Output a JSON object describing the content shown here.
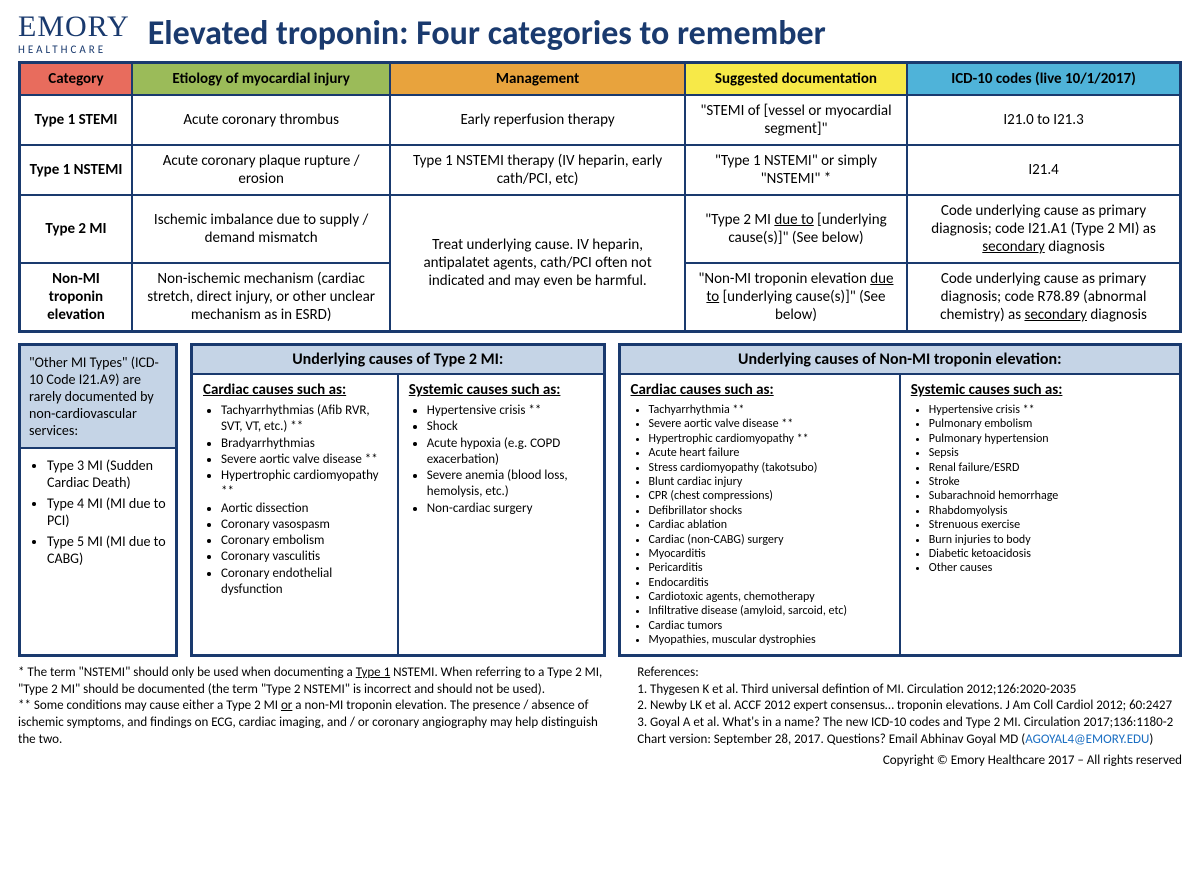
{
  "logo": {
    "main": "EMORY",
    "sub": "HEALTHCARE"
  },
  "title": "Elevated troponin: Four categories to remember",
  "columns": {
    "category": "Category",
    "etiology": "Etiology of myocardial injury",
    "management": "Management",
    "doc": "Suggested documentation",
    "icd": "ICD-10 codes (live 10/1/2017)"
  },
  "colors": {
    "category": "#e86c5d",
    "etiology": "#9bbb59",
    "management": "#e8a33d",
    "doc": "#f7e948",
    "icd": "#4fb3d9",
    "border": "#1a3a6e",
    "panel_bg": "#c5d4e6"
  },
  "rows": [
    {
      "category": "Type 1 STEMI",
      "etiology": "Acute coronary thrombus",
      "management": "Early reperfusion therapy",
      "doc": "\"STEMI of [vessel or myocardial segment]\"",
      "icd": "I21.0 to I21.3"
    },
    {
      "category": "Type 1 NSTEMI",
      "etiology": "Acute coronary plaque rupture / erosion",
      "management": "Type 1 NSTEMI therapy (IV heparin, early cath/PCI, etc)",
      "doc": "\"Type 1 NSTEMI\" or simply \"NSTEMI\" *",
      "icd": "I21.4"
    },
    {
      "category": "Type 2 MI",
      "etiology": "Ischemic imbalance due to supply / demand mismatch"
    },
    {
      "category": "Non-MI troponin elevation",
      "etiology": "Non-ischemic mechanism (cardiac stretch, direct injury, or other unclear mechanism as in ESRD)"
    }
  ],
  "merged_management": "Treat underlying cause.  IV heparin, antipalatet agents, cath/PCI often not indicated and may even be harmful.",
  "type2_doc_pre": "\"Type 2 MI ",
  "type2_doc_u": "due to",
  "type2_doc_post": " [underlying cause(s)]\" (See below)",
  "nonmi_doc_pre": "\"Non-MI troponin elevation ",
  "nonmi_doc_u": "due to",
  "nonmi_doc_post": " [underlying cause(s)]\" (See below)",
  "type2_icd_pre": "Code underlying cause as primary diagnosis; code I21.A1 (Type 2 MI) as ",
  "type2_icd_u": "secondary",
  "type2_icd_post": " diagnosis",
  "nonmi_icd_pre": "Code underlying cause as primary diagnosis; code R78.89 (abnormal chemistry) as ",
  "nonmi_icd_u": "secondary",
  "nonmi_icd_post": " diagnosis",
  "other": {
    "intro": "\"Other MI Types\" (ICD-10 Code I21.A9) are rarely documented by non-cardiovascular services:",
    "items": [
      "Type 3 MI (Sudden Cardiac Death)",
      "Type 4 MI (MI due to PCI)",
      "Type 5 MI (MI due to CABG)"
    ]
  },
  "type2_causes": {
    "header": "Underlying causes of Type 2 MI:",
    "cardiac_title": "Cardiac causes such as:",
    "cardiac": [
      "Tachyarrhythmias (Afib RVR, SVT, VT, etc.) **",
      "Bradyarrhythmias",
      "Severe aortic valve disease **",
      "Hypertrophic cardiomyopathy **",
      "Aortic dissection",
      "Coronary vasospasm",
      "Coronary embolism",
      "Coronary vasculitis",
      "Coronary endothelial dysfunction"
    ],
    "systemic_title": "Systemic causes such as:",
    "systemic": [
      "Hypertensive crisis **",
      "Shock",
      "Acute hypoxia (e.g. COPD exacerbation)",
      "Severe anemia (blood loss, hemolysis, etc.)",
      "Non-cardiac surgery"
    ]
  },
  "nonmi_causes": {
    "header": "Underlying causes of Non-MI troponin elevation:",
    "cardiac_title": "Cardiac causes such as:",
    "cardiac": [
      "Tachyarrhythmia **",
      "Severe aortic valve disease **",
      "Hypertrophic cardiomyopathy **",
      "Acute heart failure",
      "Stress cardiomyopathy (takotsubo)",
      "Blunt cardiac injury",
      "CPR (chest compressions)",
      "Defibrillator shocks",
      "Cardiac ablation",
      "Cardiac (non-CABG) surgery",
      "Myocarditis",
      "Pericarditis",
      "Endocarditis",
      "Cardiotoxic agents, chemotherapy",
      "Infiltrative disease (amyloid, sarcoid, etc)",
      "Cardiac tumors",
      "Myopathies, muscular dystrophies"
    ],
    "systemic_title": "Systemic causes such as:",
    "systemic": [
      "Hypertensive crisis **",
      "Pulmonary embolism",
      "Pulmonary hypertension",
      "Sepsis",
      "Renal failure/ESRD",
      "Stroke",
      "Subarachnoid hemorrhage",
      "Rhabdomyolysis",
      "Strenuous exercise",
      "Burn injuries to body",
      "Diabetic ketoacidosis",
      "Other causes"
    ]
  },
  "footnote1_pre": "* The term \"NSTEMI\" should only be used when documenting a ",
  "footnote1_u": "Type 1",
  "footnote1_post": " NSTEMI. When referring to a Type 2 MI, \"Type 2 MI\" should be documented (the term \"Type 2 NSTEMI\" is incorrect and should not be used).",
  "footnote2_pre": "** Some conditions may cause either a Type 2 MI ",
  "footnote2_u": "or",
  "footnote2_post": " a non-MI troponin elevation. The presence / absence of ischemic symptoms, and findings on ECG, cardiac imaging, and / or coronary angiography may help distinguish the two.",
  "references": {
    "title": "References:",
    "items": [
      "1. Thygesen K et al. Third universal defintion of MI.  Circulation 2012;126:2020-2035",
      "2. Newby LK et al. ACCF 2012 expert consensus… troponin elevations.  J Am Coll Cardiol 2012; 60:2427",
      "3. Goyal A et al. What's in a name?  The new ICD-10 codes and Type 2 MI. Circulation 2017;136:1180-2"
    ],
    "chart_pre": "Chart version:  September 28, 2017.  Questions?  Email Abhinav Goyal MD (",
    "email": "AGOYAL4@EMORY.EDU",
    "chart_post": ")"
  },
  "copyright": "Copyright © Emory Healthcare 2017 – All rights reserved"
}
